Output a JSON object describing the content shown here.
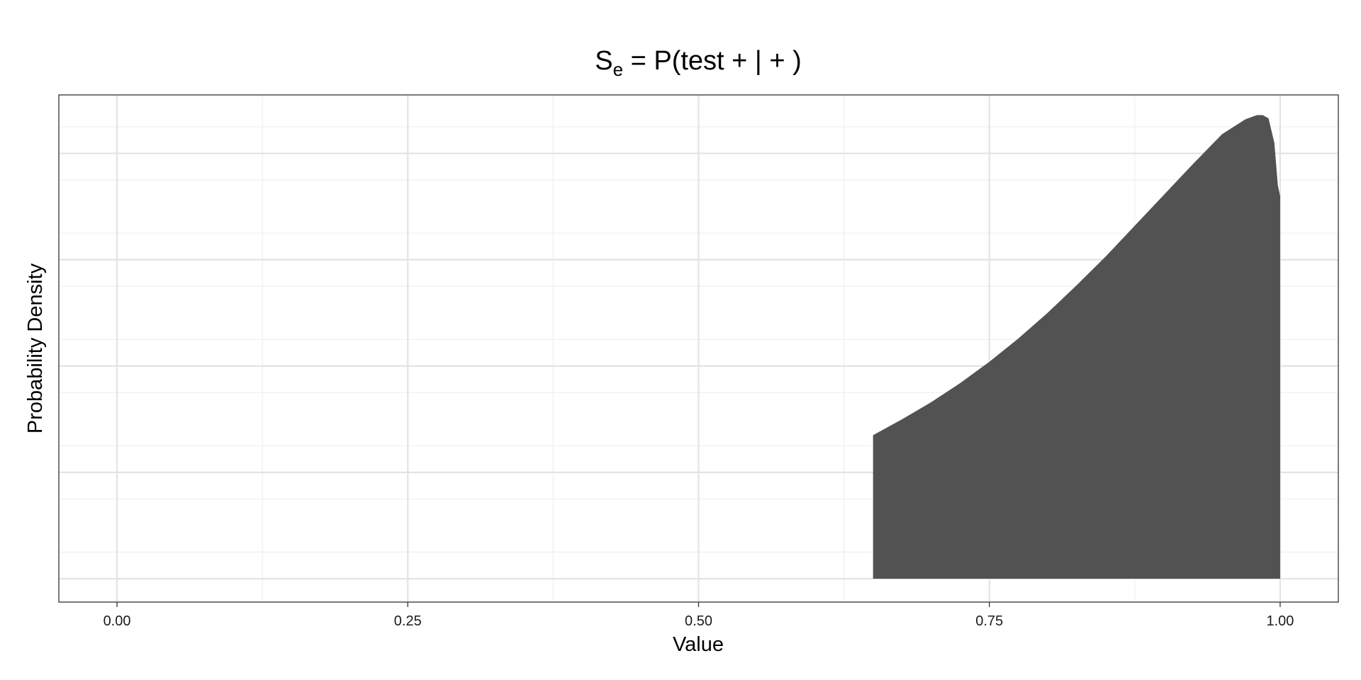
{
  "chart_data": {
    "type": "area",
    "title": {
      "prefix": "S",
      "subscript": "e",
      "rest": " = P(test + | + )"
    },
    "xlabel": "Value",
    "ylabel": "Probability Density",
    "xlim": [
      -0.05,
      1.05
    ],
    "ylim": [
      -0.22,
      4.55
    ],
    "x_ticks": [
      0.0,
      0.25,
      0.5,
      0.75,
      1.0
    ],
    "x_tick_labels": [
      "0.00",
      "0.25",
      "0.50",
      "0.75",
      "1.00"
    ],
    "y_tick_labels_shown": false,
    "grid": true,
    "legend": "none",
    "series": [
      {
        "x": [
          0.65,
          0.675,
          0.7,
          0.725,
          0.75,
          0.775,
          0.8,
          0.825,
          0.85,
          0.875,
          0.9,
          0.925,
          0.95,
          0.97,
          0.98,
          0.985,
          0.99,
          0.995,
          0.998,
          1.0
        ],
        "y": [
          1.35,
          1.5,
          1.66,
          1.84,
          2.04,
          2.26,
          2.5,
          2.76,
          3.03,
          3.32,
          3.61,
          3.9,
          4.18,
          4.32,
          4.36,
          4.36,
          4.33,
          4.1,
          3.7,
          3.6
        ]
      }
    ],
    "colors": {
      "fill": "#525252",
      "panel_border": "#333333",
      "grid_major": "#e3e3e3",
      "grid_minor": "#f0f0f0",
      "background": "#ffffff"
    }
  }
}
